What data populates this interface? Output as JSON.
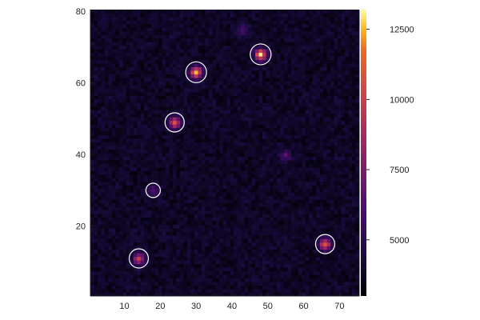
{
  "chart_data": {
    "type": "heatmap",
    "title": "",
    "xlabel": "",
    "ylabel": "",
    "xlim": [
      1,
      75
    ],
    "ylim": [
      1,
      80
    ],
    "x_ticks": [
      {
        "value": 10,
        "label": "10"
      },
      {
        "value": 20,
        "label": "20"
      },
      {
        "value": 30,
        "label": "30"
      },
      {
        "value": 40,
        "label": "40"
      },
      {
        "value": 50,
        "label": "50"
      },
      {
        "value": 60,
        "label": "60"
      },
      {
        "value": 70,
        "label": "70"
      }
    ],
    "y_ticks": [
      {
        "value": 20,
        "label": "20"
      },
      {
        "value": 40,
        "label": "40"
      },
      {
        "value": 60,
        "label": "60"
      },
      {
        "value": 80,
        "label": "80"
      }
    ],
    "grid": false,
    "colormap": "inferno",
    "colorbar": {
      "range": [
        3000,
        13200
      ],
      "ticks": [
        {
          "value": 5000,
          "label": "5000"
        },
        {
          "value": 7500,
          "label": "7500"
        },
        {
          "value": 10000,
          "label": "10000"
        },
        {
          "value": 12500,
          "label": "12500"
        }
      ]
    },
    "background_level": 3800,
    "sources": [
      {
        "x": 14,
        "y": 11,
        "peak": 9500,
        "circled": true
      },
      {
        "x": 18,
        "y": 30,
        "peak": 6500,
        "circled": true
      },
      {
        "x": 24,
        "y": 49,
        "peak": 10500,
        "circled": true
      },
      {
        "x": 30,
        "y": 63,
        "peak": 12500,
        "circled": true
      },
      {
        "x": 48,
        "y": 68,
        "peak": 13000,
        "circled": true
      },
      {
        "x": 66,
        "y": 15,
        "peak": 11000,
        "circled": true
      },
      {
        "x": 43,
        "y": 75,
        "peak": 6000,
        "circled": false
      },
      {
        "x": 55,
        "y": 40,
        "peak": 6200,
        "circled": false
      }
    ],
    "circle_color": "#ffffff"
  }
}
